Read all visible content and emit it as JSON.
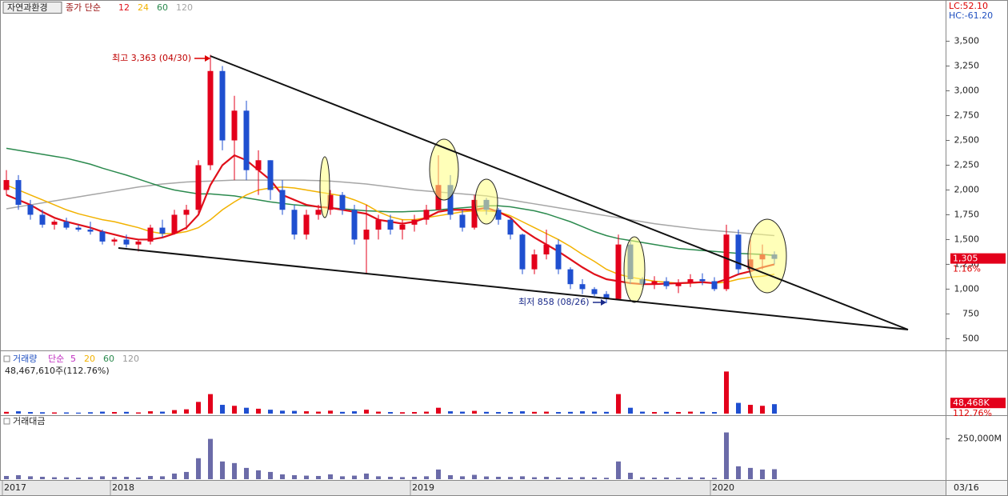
{
  "header": {
    "lc": "LC:52.10",
    "hc": "HC:-61.20",
    "date": "03/16"
  },
  "chart_data": [
    {
      "type": "candlestick",
      "title": "자연과환경",
      "legend_prefix": "종가 단순",
      "x": [
        "2017",
        null,
        null,
        null,
        null,
        null,
        null,
        null,
        null,
        "2018",
        null,
        null,
        null,
        null,
        null,
        null,
        null,
        null,
        null,
        null,
        null,
        null,
        null,
        null,
        null,
        null,
        null,
        null,
        null,
        null,
        null,
        null,
        null,
        null,
        "2019",
        null,
        null,
        null,
        null,
        null,
        null,
        null,
        null,
        null,
        null,
        null,
        null,
        null,
        null,
        null,
        null,
        null,
        null,
        null,
        null,
        null,
        null,
        null,
        null,
        "2020",
        null,
        null,
        null,
        null,
        null
      ],
      "open": [
        2000,
        2100,
        1850,
        1750,
        1650,
        1680,
        1620,
        1600,
        1580,
        1480,
        1500,
        1450,
        1480,
        1620,
        1560,
        1750,
        1800,
        2250,
        3200,
        2500,
        2800,
        2200,
        2300,
        2000,
        1800,
        1550,
        1750,
        1800,
        1950,
        1800,
        1500,
        1600,
        1700,
        1600,
        1650,
        1700,
        1800,
        2050,
        1750,
        1620,
        1900,
        1800,
        1700,
        1550,
        1200,
        1350,
        1450,
        1200,
        1050,
        1000,
        950,
        900,
        1450,
        1100,
        1050,
        1080,
        1030,
        1060,
        1100,
        1080,
        1000,
        1550,
        1200,
        1300,
        1350
      ],
      "high": [
        2200,
        2150,
        1900,
        1800,
        1700,
        1720,
        1650,
        1680,
        1600,
        1520,
        1550,
        1500,
        1650,
        1700,
        1800,
        1850,
        2300,
        3363,
        3250,
        2950,
        2900,
        2400,
        2300,
        2100,
        1850,
        1800,
        1850,
        2000,
        1980,
        1850,
        1850,
        1750,
        1750,
        1700,
        1750,
        1850,
        2350,
        2150,
        1800,
        1950,
        1920,
        1820,
        1720,
        1560,
        1400,
        1600,
        1500,
        1220,
        1100,
        1020,
        980,
        1550,
        1500,
        1120,
        1130,
        1120,
        1100,
        1150,
        1160,
        1120,
        1650,
        1600,
        1500,
        1450,
        1380
      ],
      "low": [
        1950,
        1800,
        1700,
        1620,
        1600,
        1600,
        1580,
        1550,
        1450,
        1440,
        1420,
        1380,
        1450,
        1520,
        1550,
        1600,
        1750,
        2200,
        2400,
        2100,
        2100,
        1950,
        1900,
        1750,
        1500,
        1500,
        1700,
        1750,
        1750,
        1450,
        1150,
        1500,
        1550,
        1500,
        1580,
        1650,
        1800,
        1700,
        1580,
        1600,
        1750,
        1650,
        1500,
        1150,
        1150,
        1300,
        1150,
        1000,
        950,
        930,
        858,
        890,
        1050,
        1020,
        1000,
        1000,
        960,
        1020,
        1040,
        980,
        980,
        1150,
        1150,
        1200,
        1250
      ],
      "close": [
        2100,
        1850,
        1750,
        1650,
        1680,
        1620,
        1600,
        1580,
        1480,
        1500,
        1450,
        1480,
        1620,
        1560,
        1750,
        1800,
        2250,
        3200,
        2500,
        2800,
        2200,
        2300,
        2000,
        1800,
        1550,
        1750,
        1800,
        1950,
        1800,
        1500,
        1600,
        1700,
        1600,
        1650,
        1700,
        1800,
        2050,
        1750,
        1620,
        1900,
        1800,
        1700,
        1550,
        1200,
        1350,
        1450,
        1200,
        1050,
        1000,
        950,
        900,
        1450,
        1100,
        1050,
        1080,
        1030,
        1060,
        1100,
        1080,
        1000,
        1550,
        1200,
        1300,
        1350,
        1305
      ],
      "up_color": "#e3001b",
      "down_color": "#1f4fd0",
      "series": [
        {
          "name": "12",
          "color": "#e0101a",
          "values": [
            1950,
            1900,
            1850,
            1780,
            1720,
            1680,
            1650,
            1620,
            1580,
            1550,
            1520,
            1500,
            1500,
            1520,
            1560,
            1620,
            1750,
            2050,
            2250,
            2350,
            2300,
            2200,
            2100,
            1950,
            1900,
            1850,
            1830,
            1820,
            1800,
            1780,
            1760,
            1700,
            1680,
            1660,
            1680,
            1720,
            1780,
            1800,
            1800,
            1800,
            1820,
            1780,
            1720,
            1600,
            1520,
            1450,
            1380,
            1300,
            1220,
            1150,
            1100,
            1080,
            1060,
            1050,
            1050,
            1055,
            1060,
            1065,
            1070,
            1060,
            1100,
            1150,
            1180,
            1220,
            1250
          ]
        },
        {
          "name": "24",
          "color": "#f2b200",
          "values": [
            2050,
            2000,
            1950,
            1900,
            1850,
            1800,
            1760,
            1730,
            1700,
            1680,
            1650,
            1620,
            1580,
            1560,
            1560,
            1580,
            1620,
            1700,
            1800,
            1880,
            1950,
            2000,
            2020,
            2030,
            2020,
            2000,
            1980,
            1960,
            1940,
            1900,
            1850,
            1780,
            1730,
            1700,
            1700,
            1720,
            1740,
            1760,
            1780,
            1790,
            1790,
            1780,
            1740,
            1680,
            1620,
            1560,
            1500,
            1430,
            1350,
            1280,
            1200,
            1150,
            1120,
            1100,
            1080,
            1070,
            1060,
            1060,
            1070,
            1060,
            1070,
            1100,
            1120,
            1130,
            1150
          ]
        },
        {
          "name": "60",
          "color": "#2b8a4e",
          "values": [
            2420,
            2400,
            2380,
            2360,
            2340,
            2320,
            2290,
            2260,
            2220,
            2185,
            2150,
            2110,
            2070,
            2030,
            2000,
            1980,
            1960,
            1960,
            1950,
            1940,
            1920,
            1900,
            1880,
            1865,
            1850,
            1840,
            1830,
            1820,
            1810,
            1800,
            1790,
            1785,
            1780,
            1780,
            1785,
            1790,
            1800,
            1810,
            1820,
            1830,
            1840,
            1840,
            1830,
            1810,
            1790,
            1760,
            1720,
            1680,
            1630,
            1580,
            1540,
            1510,
            1490,
            1470,
            1450,
            1430,
            1410,
            1400,
            1390,
            1380,
            1370,
            1360,
            1355,
            1350,
            1340
          ]
        },
        {
          "name": "120",
          "color": "#a6a6a6",
          "values": [
            1810,
            1830,
            1850,
            1870,
            1890,
            1910,
            1930,
            1950,
            1970,
            1990,
            2010,
            2030,
            2045,
            2060,
            2070,
            2080,
            2085,
            2090,
            2095,
            2100,
            2100,
            2100,
            2100,
            2100,
            2100,
            2098,
            2095,
            2090,
            2080,
            2070,
            2060,
            2045,
            2030,
            2015,
            2000,
            1990,
            1980,
            1970,
            1960,
            1950,
            1940,
            1920,
            1900,
            1880,
            1860,
            1840,
            1820,
            1800,
            1780,
            1760,
            1740,
            1720,
            1700,
            1680,
            1660,
            1645,
            1630,
            1615,
            1600,
            1590,
            1580,
            1570,
            1560,
            1550,
            1540
          ]
        }
      ],
      "ylim": [
        390,
        3900
      ],
      "yticks": [
        500,
        750,
        {
          "value": 1000,
          "label": "1,000"
        },
        {
          "value": 1250,
          "label": "1,250"
        },
        {
          "value": 1500,
          "label": "1,500"
        },
        {
          "value": 1750,
          "label": "1,750"
        },
        {
          "value": 2000,
          "label": "2,000"
        },
        {
          "value": 2250,
          "label": "2,250"
        },
        {
          "value": 2500,
          "label": "2,500"
        },
        {
          "value": 2750,
          "label": "2,750"
        },
        {
          "value": 3000,
          "label": "3,000"
        },
        {
          "value": 3250,
          "label": "3,250"
        },
        {
          "value": 3500,
          "label": "3,500"
        }
      ],
      "last": {
        "value": 1305,
        "label": "1,305"
      },
      "change": "1.16%",
      "high_note": "최고 3,363 (04/30)",
      "low_note": "최저 858 (08/26)"
    },
    {
      "type": "bar",
      "title": "거래량",
      "legend_prefix": "단순",
      "ma_legend": [
        {
          "name": "5",
          "color": "#c02cc0"
        },
        {
          "name": "20",
          "color": "#f2b200"
        },
        {
          "name": "60",
          "color": "#2b8a4e"
        },
        {
          "name": "120",
          "color": "#999999"
        }
      ],
      "summary": "48,467,610주(112.76%)",
      "values": [
        9000,
        12000,
        8000,
        7000,
        6000,
        6000,
        5000,
        7000,
        10000,
        8000,
        9000,
        6000,
        12000,
        10000,
        18000,
        22000,
        60000,
        100000,
        45000,
        40000,
        30000,
        25000,
        20000,
        15000,
        14000,
        12000,
        10000,
        15000,
        9000,
        12000,
        20000,
        10000,
        8000,
        7000,
        8000,
        10000,
        30000,
        12000,
        10000,
        14000,
        9000,
        8000,
        8000,
        12000,
        9000,
        10000,
        8000,
        9000,
        12000,
        10000,
        9000,
        100000,
        30000,
        10000,
        8000,
        9000,
        8000,
        10000,
        9000,
        8000,
        216000,
        55000,
        45000,
        40000,
        48468
      ],
      "ylim": [
        0,
        312000
      ],
      "last": {
        "value": 48468,
        "label": "48,468K"
      },
      "change": "112.76%"
    },
    {
      "type": "bar",
      "title": "거래대금",
      "color": "#6b6ba8",
      "values": [
        20000,
        25000,
        18000,
        15000,
        12000,
        12000,
        10000,
        13000,
        18000,
        14000,
        15000,
        11000,
        20000,
        18000,
        35000,
        45000,
        130000,
        250000,
        110000,
        100000,
        70000,
        55000,
        45000,
        30000,
        25000,
        22000,
        20000,
        30000,
        18000,
        22000,
        35000,
        18000,
        15000,
        13000,
        15000,
        18000,
        60000,
        25000,
        18000,
        27000,
        17000,
        15000,
        14000,
        18000,
        12000,
        15000,
        11000,
        11000,
        13000,
        11000,
        9000,
        110000,
        40000,
        12000,
        10000,
        11000,
        9000,
        12000,
        11000,
        9000,
        290000,
        80000,
        70000,
        60000,
        62000
      ],
      "ylim": [
        0,
        382000
      ],
      "yticks": [
        {
          "value": 250000,
          "label": "250,000M"
        }
      ]
    }
  ]
}
